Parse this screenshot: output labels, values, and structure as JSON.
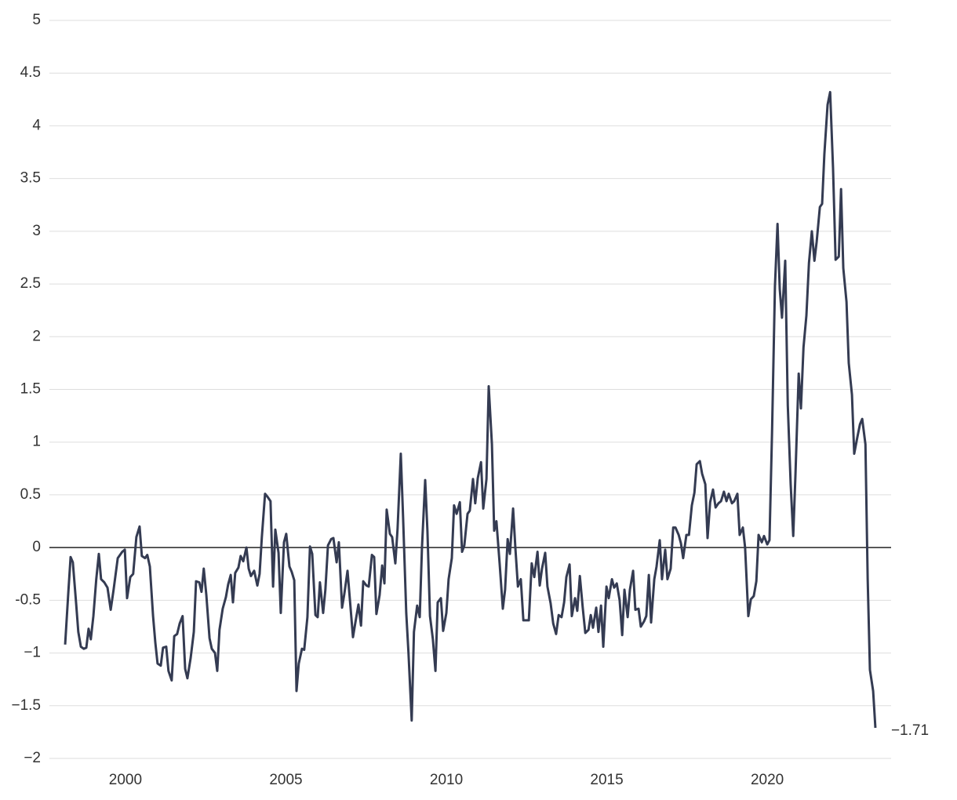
{
  "chart_data": {
    "type": "line",
    "x": [
      1998.12,
      1998.22,
      1998.29,
      1998.36,
      1998.46,
      1998.53,
      1998.61,
      1998.7,
      1998.78,
      1998.85,
      1998.92,
      1999.0,
      1999.09,
      1999.17,
      1999.24,
      1999.34,
      1999.44,
      1999.54,
      1999.63,
      1999.76,
      1999.9,
      1999.98,
      2000.05,
      2000.15,
      2000.24,
      2000.34,
      2000.44,
      2000.51,
      2000.61,
      2000.68,
      2000.76,
      2000.86,
      2000.93,
      2001.0,
      2001.1,
      2001.17,
      2001.27,
      2001.34,
      2001.44,
      2001.52,
      2001.61,
      2001.69,
      2001.78,
      2001.86,
      2001.93,
      2002.03,
      2002.13,
      2002.2,
      2002.3,
      2002.37,
      2002.44,
      2002.52,
      2002.62,
      2002.69,
      2002.79,
      2002.86,
      2002.93,
      2003.03,
      2003.13,
      2003.2,
      2003.28,
      2003.35,
      2003.42,
      2003.52,
      2003.59,
      2003.67,
      2003.77,
      2003.84,
      2003.91,
      2004.01,
      2004.11,
      2004.18,
      2004.25,
      2004.35,
      2004.43,
      2004.52,
      2004.6,
      2004.67,
      2004.77,
      2004.84,
      2004.94,
      2005.01,
      2005.11,
      2005.18,
      2005.26,
      2005.33,
      2005.4,
      2005.5,
      2005.57,
      2005.67,
      2005.75,
      2005.82,
      2005.92,
      2005.99,
      2006.06,
      2006.16,
      2006.23,
      2006.31,
      2006.41,
      2006.48,
      2006.58,
      2006.65,
      2006.75,
      2006.82,
      2006.92,
      2006.99,
      2007.09,
      2007.16,
      2007.26,
      2007.34,
      2007.41,
      2007.51,
      2007.58,
      2007.68,
      2007.75,
      2007.82,
      2007.92,
      2008.0,
      2008.07,
      2008.14,
      2008.24,
      2008.31,
      2008.41,
      2008.48,
      2008.58,
      2008.65,
      2008.75,
      2008.82,
      2008.92,
      2008.99,
      2009.09,
      2009.17,
      2009.24,
      2009.34,
      2009.41,
      2009.49,
      2009.58,
      2009.66,
      2009.73,
      2009.83,
      2009.9,
      2010.0,
      2010.07,
      2010.17,
      2010.24,
      2010.32,
      2010.42,
      2010.49,
      2010.56,
      2010.66,
      2010.73,
      2010.83,
      2010.9,
      2010.98,
      2011.08,
      2011.15,
      2011.25,
      2011.32,
      2011.42,
      2011.49,
      2011.56,
      2011.66,
      2011.76,
      2011.83,
      2011.91,
      2011.98,
      2012.08,
      2012.15,
      2012.23,
      2012.32,
      2012.4,
      2012.49,
      2012.57,
      2012.66,
      2012.74,
      2012.84,
      2012.91,
      2012.98,
      2013.08,
      2013.15,
      2013.25,
      2013.33,
      2013.42,
      2013.5,
      2013.59,
      2013.67,
      2013.74,
      2013.84,
      2013.91,
      2014.01,
      2014.08,
      2014.16,
      2014.25,
      2014.33,
      2014.43,
      2014.5,
      2014.57,
      2014.67,
      2014.74,
      2014.82,
      2014.89,
      2014.99,
      2015.06,
      2015.16,
      2015.23,
      2015.31,
      2015.4,
      2015.48,
      2015.55,
      2015.65,
      2015.72,
      2015.82,
      2015.89,
      2015.99,
      2016.06,
      2016.16,
      2016.23,
      2016.31,
      2016.38,
      2016.48,
      2016.55,
      2016.65,
      2016.72,
      2016.82,
      2016.89,
      2016.99,
      2017.07,
      2017.14,
      2017.24,
      2017.31,
      2017.38,
      2017.48,
      2017.56,
      2017.65,
      2017.73,
      2017.8,
      2017.9,
      2017.97,
      2018.07,
      2018.14,
      2018.22,
      2018.31,
      2018.39,
      2018.48,
      2018.56,
      2018.65,
      2018.73,
      2018.8,
      2018.9,
      2018.97,
      2019.07,
      2019.14,
      2019.24,
      2019.31,
      2019.41,
      2019.49,
      2019.58,
      2019.66,
      2019.73,
      2019.83,
      2019.9,
      2020.0,
      2020.07,
      2020.15,
      2020.24,
      2020.32,
      2020.39,
      2020.46,
      2020.56,
      2020.64,
      2020.73,
      2020.81,
      2020.88,
      2020.98,
      2021.05,
      2021.13,
      2021.22,
      2021.3,
      2021.39,
      2021.47,
      2021.54,
      2021.64,
      2021.71,
      2021.78,
      2021.88,
      2021.96,
      2022.05,
      2022.13,
      2022.23,
      2022.3,
      2022.37,
      2022.47,
      2022.54,
      2022.64,
      2022.71,
      2022.81,
      2022.89,
      2022.96,
      2023.06,
      2023.13,
      2023.2,
      2023.3,
      2023.37
    ],
    "series": [
      {
        "color": "#343b52",
        "values": [
          -0.92,
          -0.42,
          -0.09,
          -0.14,
          -0.52,
          -0.8,
          -0.94,
          -0.96,
          -0.95,
          -0.77,
          -0.87,
          -0.65,
          -0.3,
          -0.06,
          -0.3,
          -0.33,
          -0.38,
          -0.59,
          -0.4,
          -0.1,
          -0.04,
          -0.02,
          -0.48,
          -0.28,
          -0.25,
          0.1,
          0.2,
          -0.08,
          -0.1,
          -0.07,
          -0.18,
          -0.65,
          -0.9,
          -1.1,
          -1.12,
          -0.95,
          -0.94,
          -1.17,
          -1.26,
          -0.84,
          -0.82,
          -0.72,
          -0.65,
          -1.15,
          -1.24,
          -1.05,
          -0.8,
          -0.32,
          -0.33,
          -0.42,
          -0.2,
          -0.45,
          -0.86,
          -0.96,
          -1.0,
          -1.17,
          -0.78,
          -0.58,
          -0.47,
          -0.35,
          -0.26,
          -0.52,
          -0.24,
          -0.19,
          -0.08,
          -0.13,
          0.0,
          -0.2,
          -0.27,
          -0.22,
          -0.36,
          -0.25,
          0.1,
          0.51,
          0.48,
          0.44,
          -0.37,
          0.17,
          -0.05,
          -0.62,
          0.05,
          0.13,
          -0.18,
          -0.23,
          -0.31,
          -1.36,
          -1.1,
          -0.96,
          -0.97,
          -0.66,
          0.01,
          -0.06,
          -0.64,
          -0.66,
          -0.33,
          -0.62,
          -0.4,
          0.02,
          0.08,
          0.09,
          -0.14,
          0.05,
          -0.57,
          -0.44,
          -0.22,
          -0.48,
          -0.85,
          -0.72,
          -0.54,
          -0.74,
          -0.32,
          -0.36,
          -0.37,
          -0.07,
          -0.09,
          -0.63,
          -0.45,
          -0.17,
          -0.34,
          0.36,
          0.13,
          0.1,
          -0.15,
          0.18,
          0.89,
          0.3,
          -0.62,
          -1.0,
          -1.64,
          -0.8,
          -0.55,
          -0.66,
          0.0,
          0.64,
          0.16,
          -0.65,
          -0.87,
          -1.17,
          -0.52,
          -0.48,
          -0.79,
          -0.62,
          -0.3,
          -0.1,
          0.4,
          0.32,
          0.43,
          -0.04,
          0.02,
          0.32,
          0.35,
          0.65,
          0.42,
          0.66,
          0.81,
          0.37,
          0.65,
          1.53,
          0.98,
          0.16,
          0.25,
          -0.15,
          -0.58,
          -0.4,
          0.08,
          -0.06,
          0.37,
          0.0,
          -0.37,
          -0.3,
          -0.69,
          -0.69,
          -0.69,
          -0.15,
          -0.28,
          -0.04,
          -0.36,
          -0.2,
          -0.05,
          -0.37,
          -0.53,
          -0.72,
          -0.82,
          -0.64,
          -0.66,
          -0.52,
          -0.28,
          -0.16,
          -0.65,
          -0.48,
          -0.6,
          -0.27,
          -0.57,
          -0.81,
          -0.78,
          -0.64,
          -0.76,
          -0.57,
          -0.8,
          -0.55,
          -0.94,
          -0.37,
          -0.48,
          -0.3,
          -0.38,
          -0.34,
          -0.5,
          -0.83,
          -0.4,
          -0.66,
          -0.4,
          -0.22,
          -0.59,
          -0.58,
          -0.75,
          -0.7,
          -0.65,
          -0.26,
          -0.71,
          -0.3,
          -0.18,
          0.07,
          -0.3,
          -0.02,
          -0.3,
          -0.2,
          0.19,
          0.19,
          0.12,
          0.04,
          -0.1,
          0.12,
          0.12,
          0.4,
          0.52,
          0.79,
          0.82,
          0.7,
          0.6,
          0.09,
          0.43,
          0.55,
          0.38,
          0.42,
          0.44,
          0.53,
          0.44,
          0.51,
          0.42,
          0.44,
          0.51,
          0.12,
          0.19,
          0.0,
          -0.65,
          -0.49,
          -0.46,
          -0.32,
          0.12,
          0.05,
          0.11,
          0.03,
          0.07,
          1.1,
          2.48,
          3.07,
          2.45,
          2.18,
          2.72,
          1.35,
          0.6,
          0.11,
          0.7,
          1.65,
          1.32,
          1.9,
          2.2,
          2.7,
          3.0,
          2.72,
          2.9,
          3.23,
          3.26,
          3.73,
          4.2,
          4.32,
          3.6,
          2.73,
          2.76,
          3.4,
          2.65,
          2.33,
          1.75,
          1.45,
          0.89,
          1.05,
          1.17,
          1.22,
          0.98,
          -0.3,
          -1.16,
          -1.36,
          -1.71
        ]
      }
    ],
    "end_label": "−1.71",
    "xlim": [
      1997.63,
      2023.86
    ],
    "xticks": [
      2000,
      2005,
      2010,
      2015,
      2020
    ],
    "ylim": [
      -2,
      5
    ],
    "yticks": [
      {
        "value": -2,
        "label": "−2"
      },
      {
        "value": -1.5,
        "label": "−1.5"
      },
      {
        "value": -1,
        "label": "−1"
      },
      {
        "value": -0.5,
        "label": "-0.5"
      },
      0,
      0.5,
      1,
      1.5,
      2,
      2.5,
      3,
      3.5,
      4,
      4.5,
      5
    ],
    "grid": true,
    "zero_line": true
  }
}
